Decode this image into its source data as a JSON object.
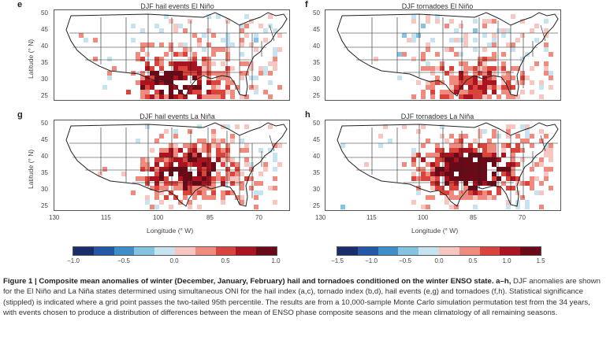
{
  "panels": [
    {
      "letter": "e",
      "title": "DJF hail events El Niño"
    },
    {
      "letter": "f",
      "title": "DJF tornadoes El Niño"
    },
    {
      "letter": "g",
      "title": "DJF hail events La Niña"
    },
    {
      "letter": "h",
      "title": "DJF tornadoes La Niña"
    }
  ],
  "axes": {
    "ylabel": "Latitude (° N)",
    "xlabel": "Longitude (° W)",
    "lat_ticks": [
      "50",
      "45",
      "40",
      "35",
      "30",
      "25"
    ],
    "lon_ticks": [
      "130",
      "115",
      "100",
      "85",
      "70"
    ]
  },
  "colorbars": [
    {
      "ticks": [
        "−1.0",
        "−0.5",
        "0.0",
        "0.5",
        "1.0"
      ]
    },
    {
      "ticks": [
        "−1.5",
        "−1.0",
        "−0.5",
        "0.0",
        "0.5",
        "1.0",
        "1.5"
      ]
    }
  ],
  "colors": {
    "scale": [
      "#1a2d6b",
      "#2458a6",
      "#3e8ec8",
      "#86c3e0",
      "#c6e3ef",
      "#f0f0f0",
      "#f7c6c0",
      "#ef8a7e",
      "#d9443c",
      "#a8141f",
      "#6a0a18"
    ],
    "land": "#ffffff",
    "border": "#222222"
  },
  "caption": {
    "heading": "Figure 1 | Composite mean anomalies of winter (December, January, February) hail and tornadoes conditioned on the winter ENSO state. a–h,",
    "body": "DJF anomalies are shown for the El Niño and La Niña states determined using simultaneous ONI for the hail index (a,c), tornado index (b,d), hail events (e,g) and tornadoes (f,h). Statistical significance (stippled) is indicated where a grid point passes the two-tailed 95th percentile. The results are from a 10,000-sample Monte Carlo simulation permutation test from the 34 years, with events chosen to produce a distribution of differences between the mean of ENSO phase composite seasons and the mean climatology of all remaining seasons."
  }
}
